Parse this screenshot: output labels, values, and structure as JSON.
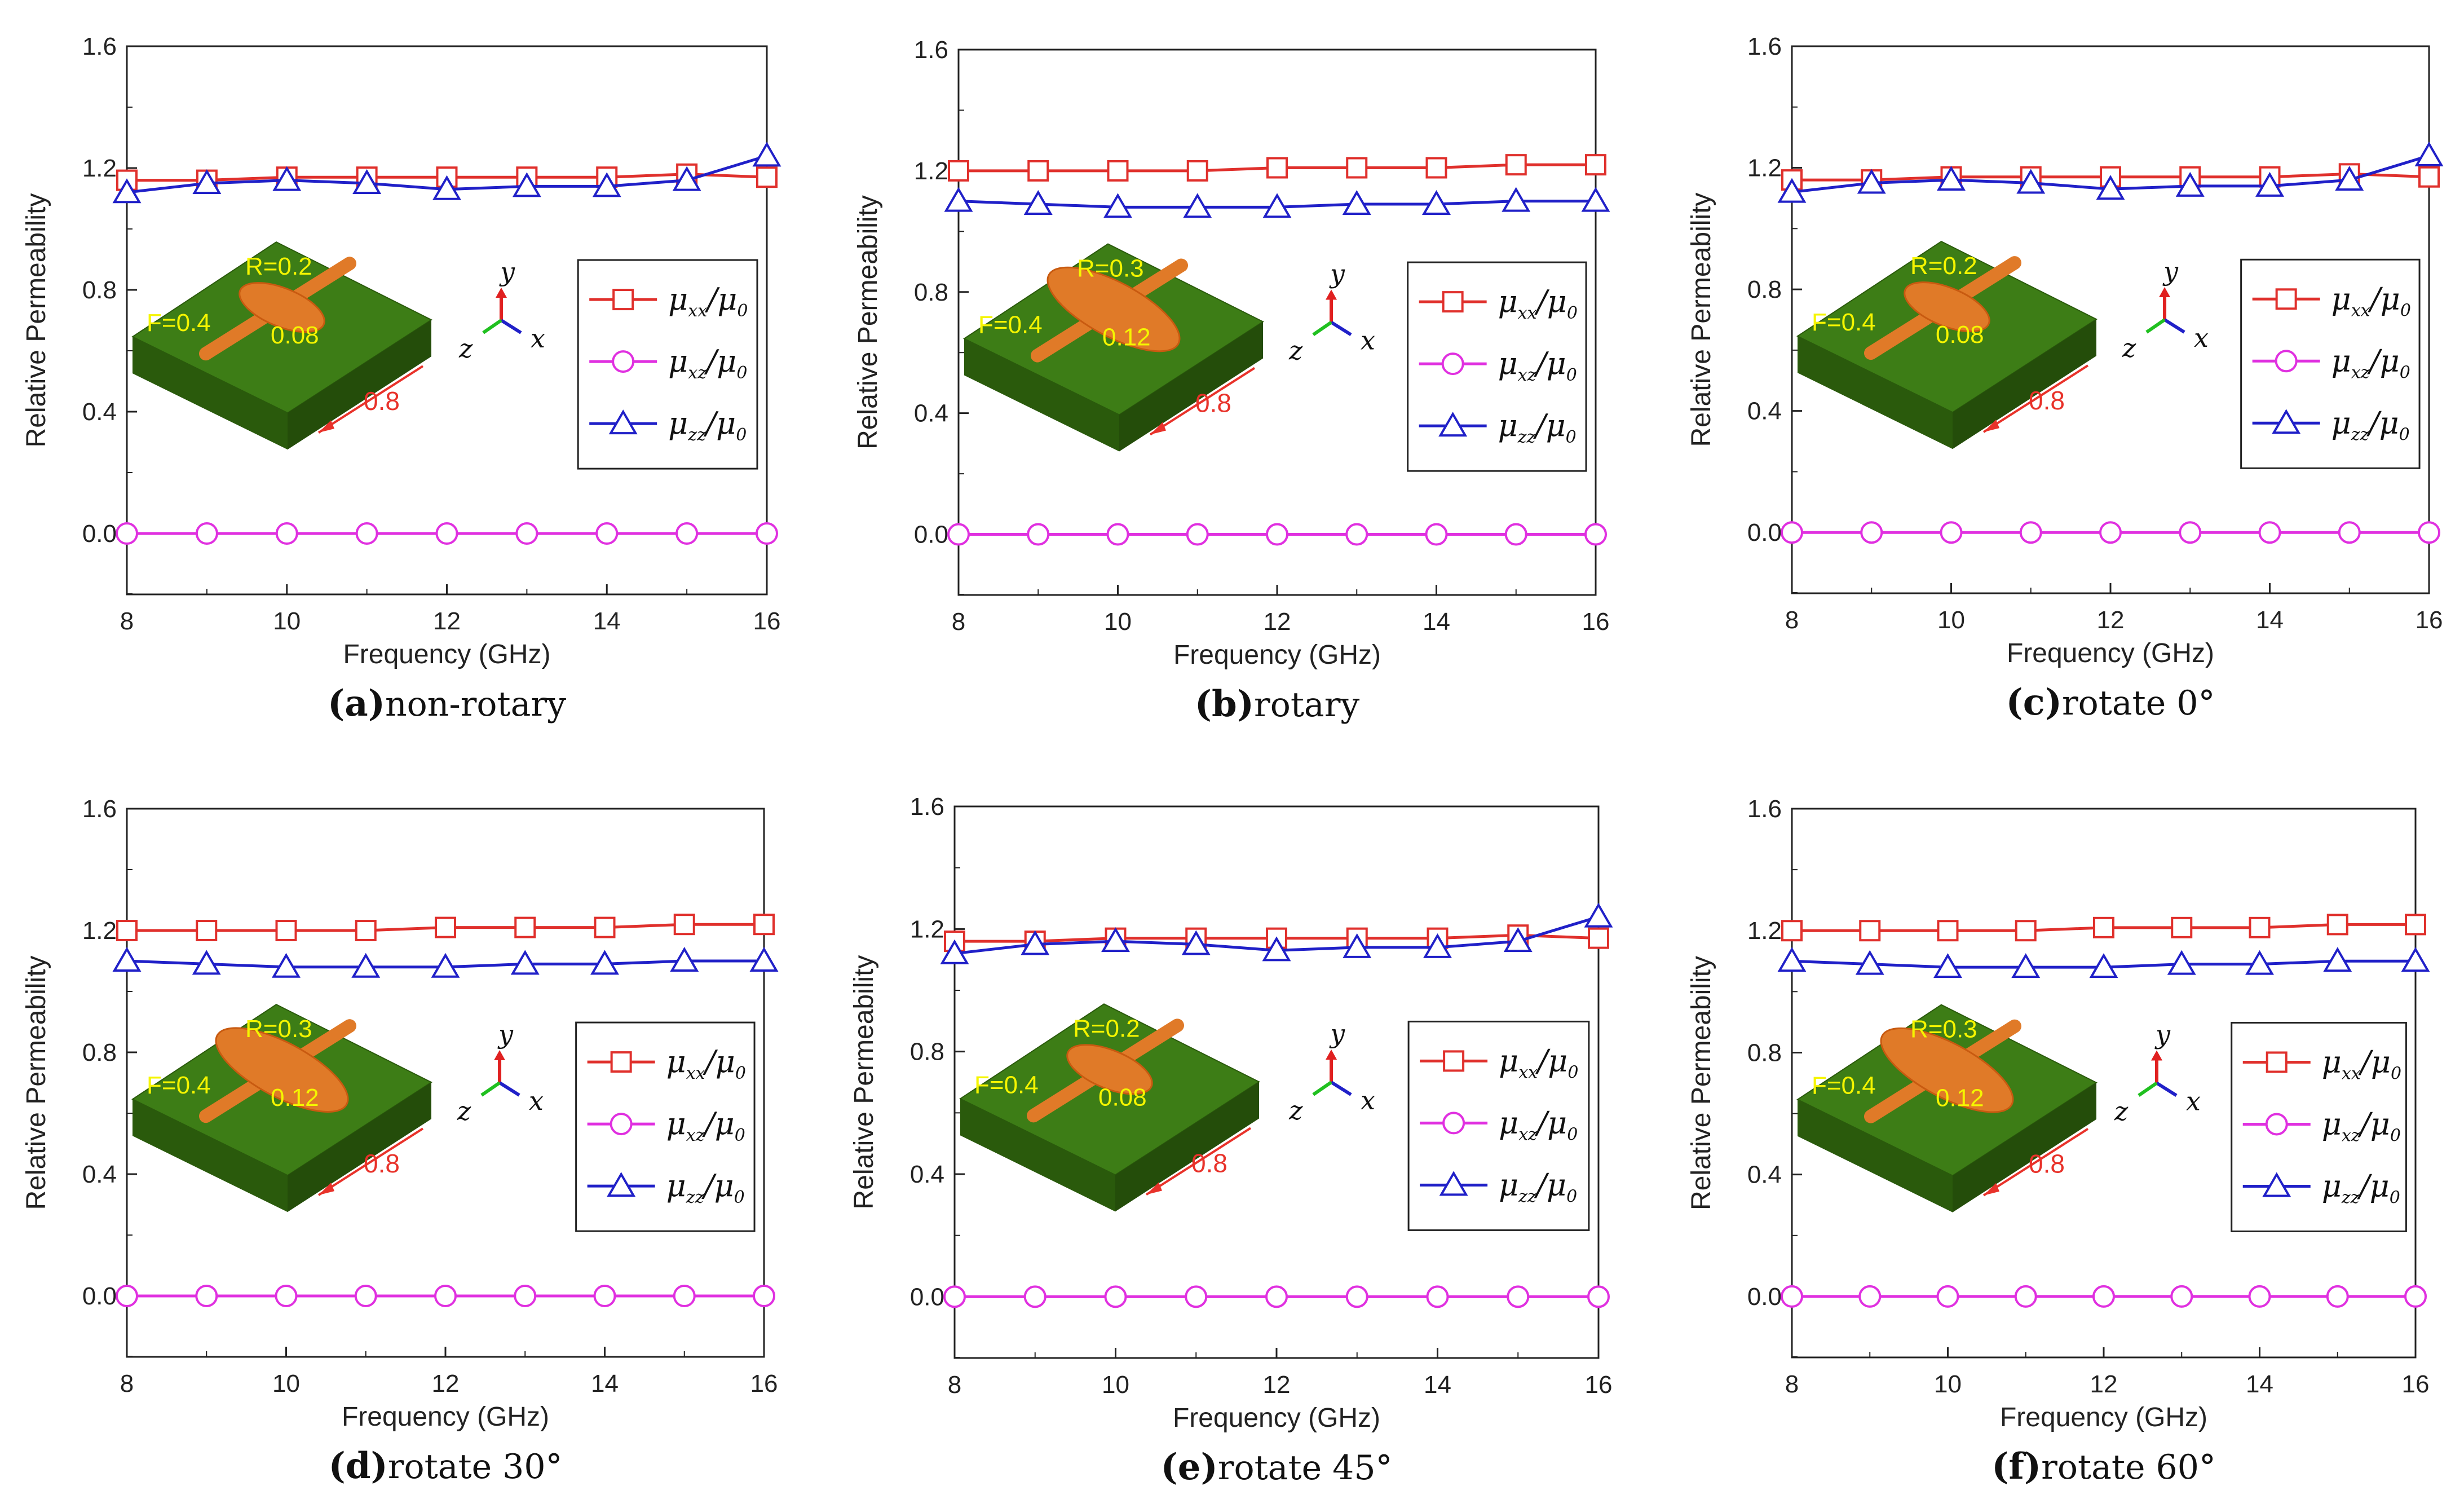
{
  "colors": {
    "xx": "#e0302c",
    "xz": "#e030e0",
    "zz": "#2020c8",
    "substrate": "#2f6b10",
    "wire": "#e07a28"
  },
  "legend": {
    "mu": "μ",
    "xx_sub": "xx",
    "xz_sub": "xz",
    "zz_sub": "zz",
    "den": "/μ",
    "den_sub": "0"
  },
  "axes_labels": {
    "x": "x",
    "y": "y",
    "z": "z"
  },
  "chart_data": [
    {
      "type": "line",
      "caption_letter": "(a)",
      "caption_text": "non-rotary",
      "xlabel": "Frequency (GHz)",
      "ylabel": "Relative Permeability",
      "xlim": [
        8,
        16
      ],
      "ylim": [
        -0.2,
        1.6
      ],
      "xticks": [
        "8",
        "10",
        "12",
        "14",
        "16"
      ],
      "yticks": [
        "0.0",
        "0.4",
        "0.8",
        "1.2",
        "1.6"
      ],
      "x": [
        8,
        9,
        10,
        11,
        12,
        13,
        14,
        15,
        16
      ],
      "series": [
        {
          "name": "μxx/μ0",
          "marker": "square",
          "values": [
            1.16,
            1.16,
            1.17,
            1.17,
            1.17,
            1.17,
            1.17,
            1.18,
            1.17
          ]
        },
        {
          "name": "μxz/μ0",
          "marker": "circle",
          "values": [
            0,
            0,
            0,
            0,
            0,
            0,
            0,
            0,
            0
          ]
        },
        {
          "name": "μzz/μ0",
          "marker": "triangle",
          "values": [
            1.12,
            1.15,
            1.16,
            1.15,
            1.13,
            1.14,
            1.14,
            1.16,
            1.24
          ]
        }
      ],
      "inset": {
        "R": "R=0.2",
        "F": "F=0.4",
        "d": "0.08",
        "L": "0.8"
      }
    },
    {
      "type": "line",
      "caption_letter": "(b)",
      "caption_text": "rotary",
      "xlabel": "Frequency (GHz)",
      "ylabel": "Relative Permeability",
      "xlim": [
        8,
        16
      ],
      "ylim": [
        -0.2,
        1.6
      ],
      "xticks": [
        "8",
        "10",
        "12",
        "14",
        "16"
      ],
      "yticks": [
        "0.0",
        "0.4",
        "0.8",
        "1.2",
        "1.6"
      ],
      "x": [
        8,
        9,
        10,
        11,
        12,
        13,
        14,
        15,
        16
      ],
      "series": [
        {
          "name": "μxx/μ0",
          "marker": "square",
          "values": [
            1.2,
            1.2,
            1.2,
            1.2,
            1.21,
            1.21,
            1.21,
            1.22,
            1.22
          ]
        },
        {
          "name": "μxz/μ0",
          "marker": "circle",
          "values": [
            0,
            0,
            0,
            0,
            0,
            0,
            0,
            0,
            0
          ]
        },
        {
          "name": "μzz/μ0",
          "marker": "triangle",
          "values": [
            1.1,
            1.09,
            1.08,
            1.08,
            1.08,
            1.09,
            1.09,
            1.1,
            1.1
          ]
        }
      ],
      "inset": {
        "R": "R=0.3",
        "F": "F=0.4",
        "d": "0.12",
        "L": "0.8"
      }
    },
    {
      "type": "line",
      "caption_letter": "(c)",
      "caption_text": "rotate 0°",
      "xlabel": "Frequency (GHz)",
      "ylabel": "Relative Permeability",
      "xlim": [
        8,
        16
      ],
      "ylim": [
        -0.2,
        1.6
      ],
      "xticks": [
        "8",
        "10",
        "12",
        "14",
        "16"
      ],
      "yticks": [
        "0.0",
        "0.4",
        "0.8",
        "1.2",
        "1.6"
      ],
      "x": [
        8,
        9,
        10,
        11,
        12,
        13,
        14,
        15,
        16
      ],
      "series": [
        {
          "name": "μxx/μ0",
          "marker": "square",
          "values": [
            1.16,
            1.16,
            1.17,
            1.17,
            1.17,
            1.17,
            1.17,
            1.18,
            1.17
          ]
        },
        {
          "name": "μxz/μ0",
          "marker": "circle",
          "values": [
            0,
            0,
            0,
            0,
            0,
            0,
            0,
            0,
            0
          ]
        },
        {
          "name": "μzz/μ0",
          "marker": "triangle",
          "values": [
            1.12,
            1.15,
            1.16,
            1.15,
            1.13,
            1.14,
            1.14,
            1.16,
            1.24
          ]
        }
      ],
      "inset": {
        "R": "R=0.2",
        "F": "F=0.4",
        "d": "0.08",
        "L": "0.8"
      }
    },
    {
      "type": "line",
      "caption_letter": "(d)",
      "caption_text": "rotate 30°",
      "xlabel": "Frequency (GHz)",
      "ylabel": "Relative Permeability",
      "xlim": [
        8,
        16
      ],
      "ylim": [
        -0.2,
        1.6
      ],
      "xticks": [
        "8",
        "10",
        "12",
        "14",
        "16"
      ],
      "yticks": [
        "0.0",
        "0.4",
        "0.8",
        "1.2",
        "1.6"
      ],
      "x": [
        8,
        9,
        10,
        11,
        12,
        13,
        14,
        15,
        16
      ],
      "series": [
        {
          "name": "μxx/μ0",
          "marker": "square",
          "values": [
            1.2,
            1.2,
            1.2,
            1.2,
            1.21,
            1.21,
            1.21,
            1.22,
            1.22
          ]
        },
        {
          "name": "μxz/μ0",
          "marker": "circle",
          "values": [
            0,
            0,
            0,
            0,
            0,
            0,
            0,
            0,
            0
          ]
        },
        {
          "name": "μzz/μ0",
          "marker": "triangle",
          "values": [
            1.1,
            1.09,
            1.08,
            1.08,
            1.08,
            1.09,
            1.09,
            1.1,
            1.1
          ]
        }
      ],
      "inset": {
        "R": "R=0.3",
        "F": "F=0.4",
        "d": "0.12",
        "L": "0.8"
      }
    },
    {
      "type": "line",
      "caption_letter": "(e)",
      "caption_text": "rotate 45°",
      "xlabel": "Frequency (GHz)",
      "ylabel": "Relative Permeability",
      "xlim": [
        8,
        16
      ],
      "ylim": [
        -0.2,
        1.6
      ],
      "xticks": [
        "8",
        "10",
        "12",
        "14",
        "16"
      ],
      "yticks": [
        "0.0",
        "0.4",
        "0.8",
        "1.2",
        "1.6"
      ],
      "x": [
        8,
        9,
        10,
        11,
        12,
        13,
        14,
        15,
        16
      ],
      "series": [
        {
          "name": "μxx/μ0",
          "marker": "square",
          "values": [
            1.16,
            1.16,
            1.17,
            1.17,
            1.17,
            1.17,
            1.17,
            1.18,
            1.17
          ]
        },
        {
          "name": "μxz/μ0",
          "marker": "circle",
          "values": [
            0,
            0,
            0,
            0,
            0,
            0,
            0,
            0,
            0
          ]
        },
        {
          "name": "μzz/μ0",
          "marker": "triangle",
          "values": [
            1.12,
            1.15,
            1.16,
            1.15,
            1.13,
            1.14,
            1.14,
            1.16,
            1.24
          ]
        }
      ],
      "inset": {
        "R": "R=0.2",
        "F": "F=0.4",
        "d": "0.08",
        "L": "0.8"
      }
    },
    {
      "type": "line",
      "caption_letter": "(f)",
      "caption_text": "rotate 60°",
      "xlabel": "Frequency (GHz)",
      "ylabel": "Relative Permeability",
      "xlim": [
        8,
        16
      ],
      "ylim": [
        -0.2,
        1.6
      ],
      "xticks": [
        "8",
        "10",
        "12",
        "14",
        "16"
      ],
      "yticks": [
        "0.0",
        "0.4",
        "0.8",
        "1.2",
        "1.6"
      ],
      "x": [
        8,
        9,
        10,
        11,
        12,
        13,
        14,
        15,
        16
      ],
      "series": [
        {
          "name": "μxx/μ0",
          "marker": "square",
          "values": [
            1.2,
            1.2,
            1.2,
            1.2,
            1.21,
            1.21,
            1.21,
            1.22,
            1.22
          ]
        },
        {
          "name": "μxz/μ0",
          "marker": "circle",
          "values": [
            0,
            0,
            0,
            0,
            0,
            0,
            0,
            0,
            0
          ]
        },
        {
          "name": "μzz/μ0",
          "marker": "triangle",
          "values": [
            1.1,
            1.09,
            1.08,
            1.08,
            1.08,
            1.09,
            1.09,
            1.1,
            1.1
          ]
        }
      ],
      "inset": {
        "R": "R=0.3",
        "F": "F=0.4",
        "d": "0.12",
        "L": "0.8"
      }
    }
  ]
}
